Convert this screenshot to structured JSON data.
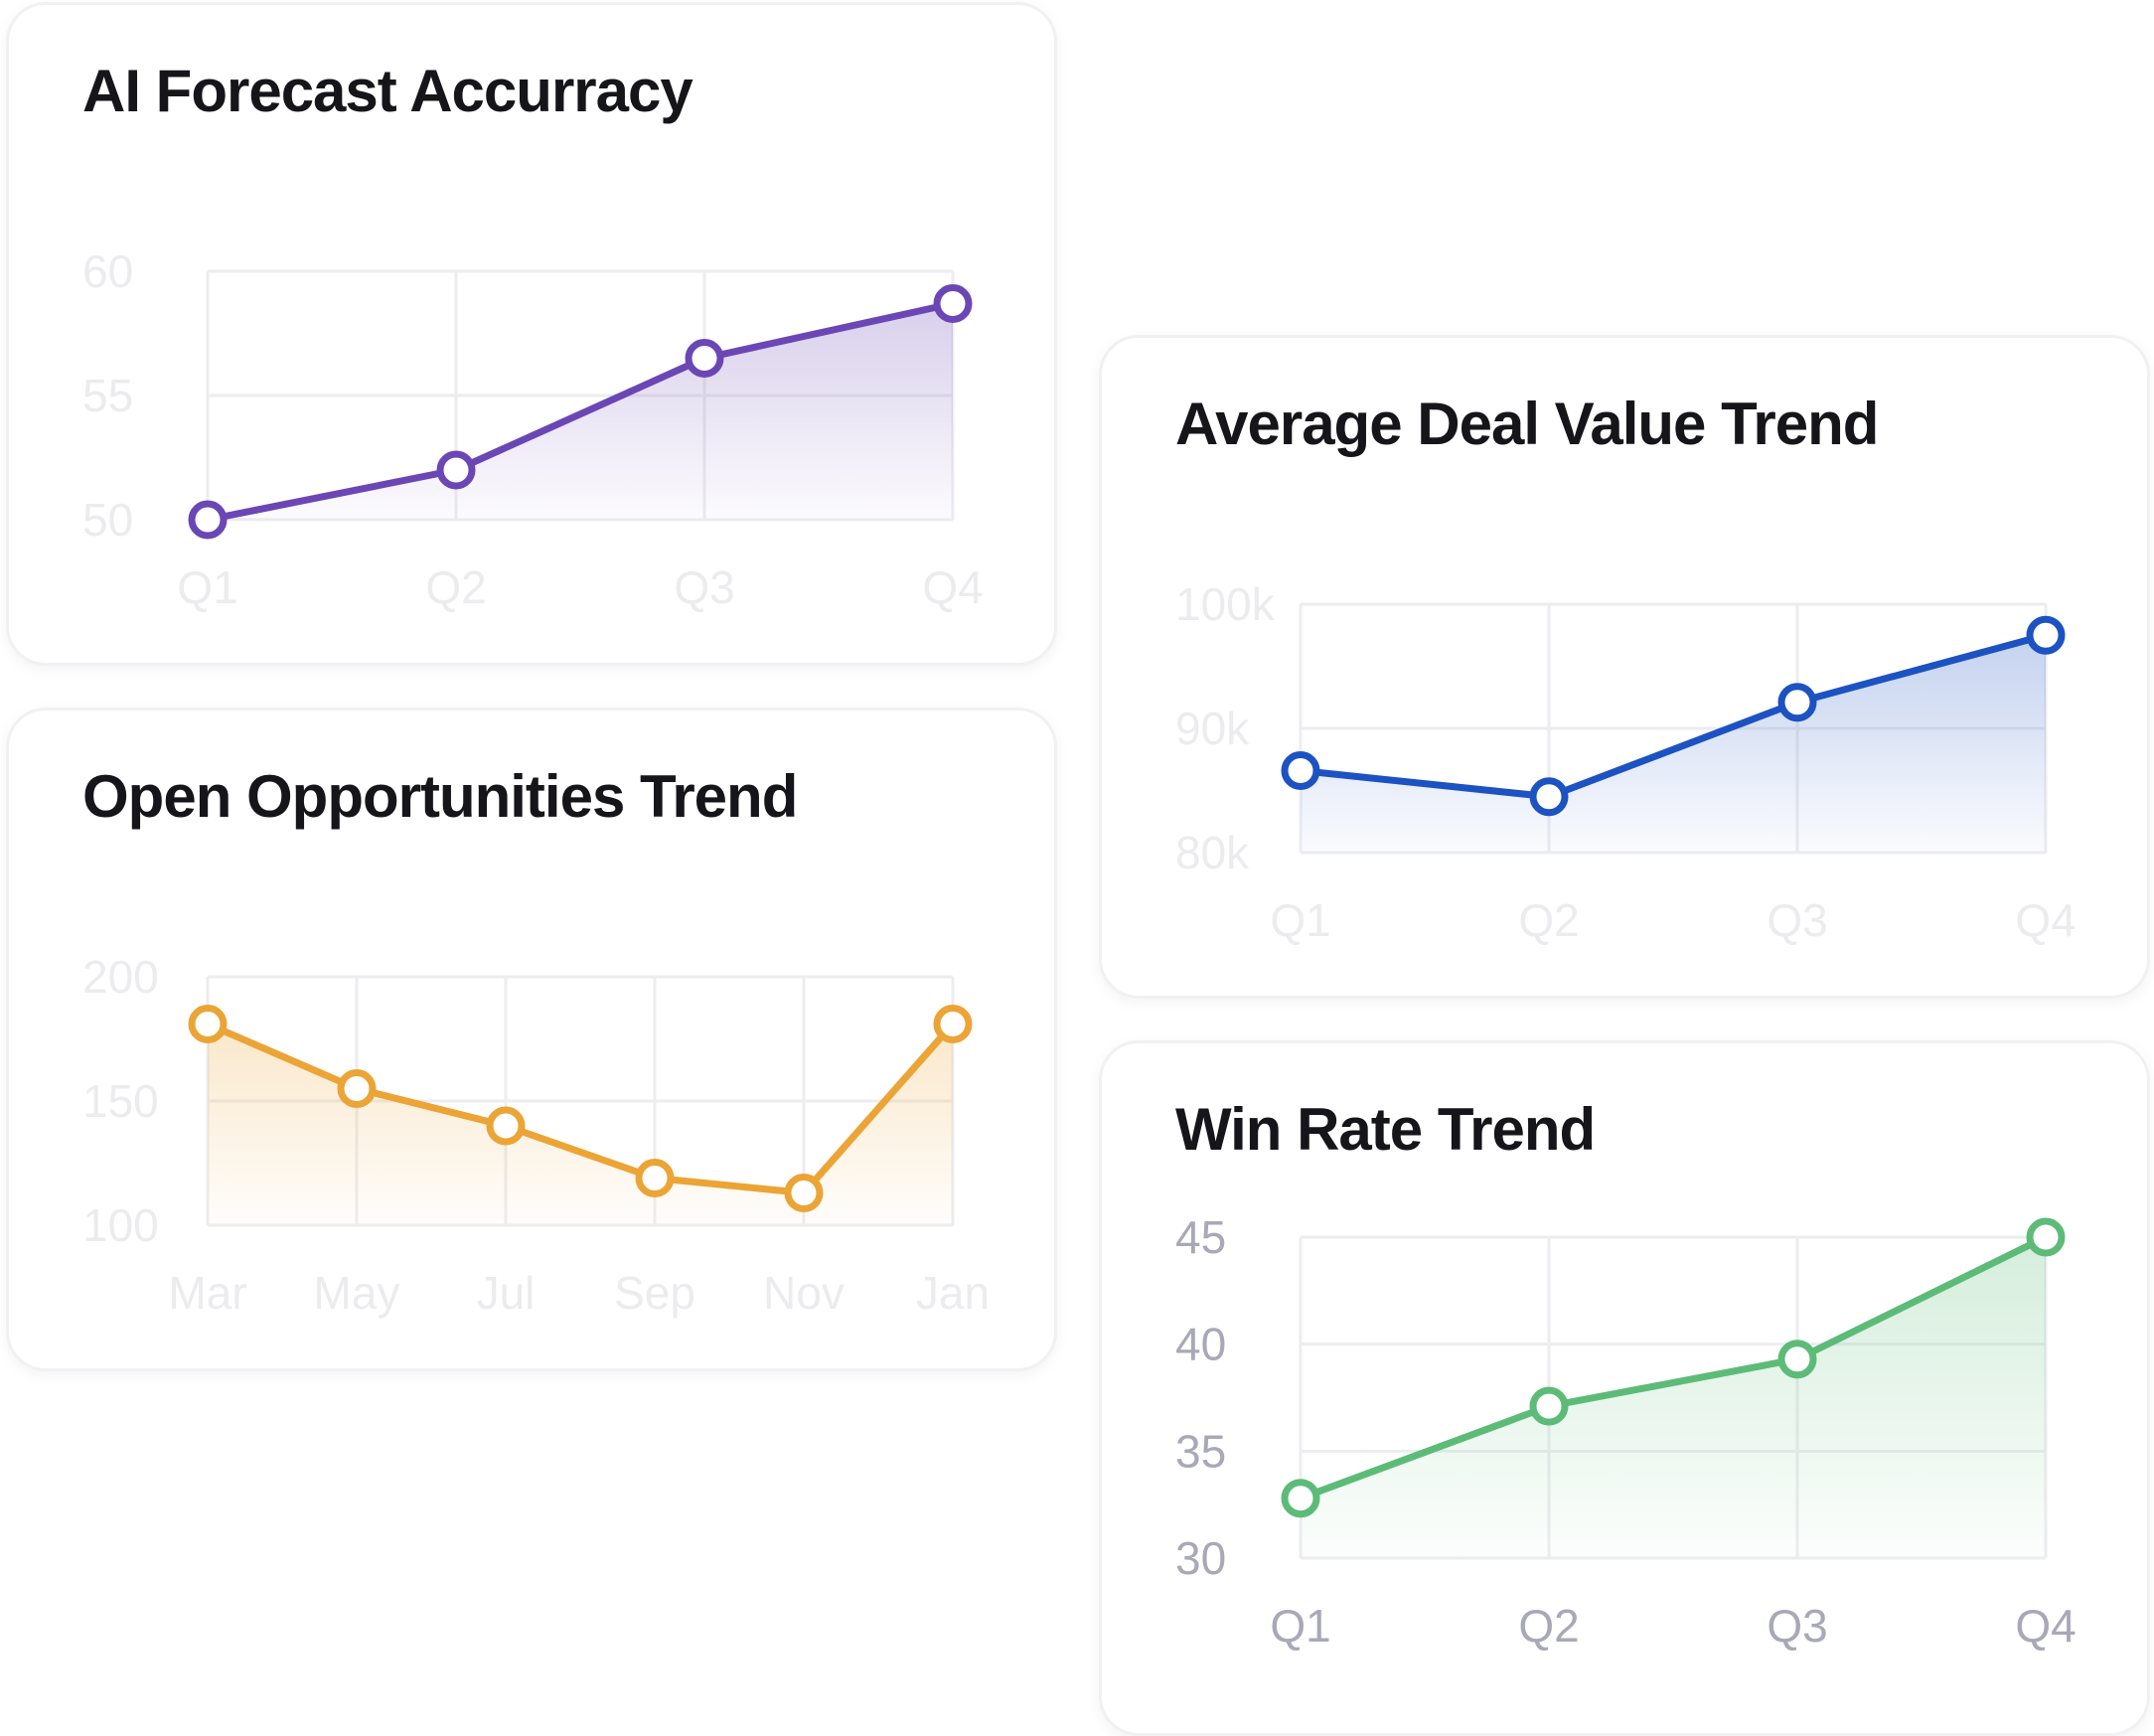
{
  "colors": {
    "forecast": "#6b46b5",
    "opportunities": "#eba435",
    "deal_value": "#1c52c2",
    "win_rate": "#5dbb78",
    "tick_faded": "#ececef",
    "tick_dark": "#a8a8b8",
    "grid": "#ededf0"
  },
  "chart_data": [
    {
      "id": "forecast",
      "type": "area",
      "title": "AI Forecast Accurracy",
      "xlabel": "",
      "ylabel": "",
      "categories": [
        "Q1",
        "Q2",
        "Q3",
        "Q4"
      ],
      "values": [
        50,
        52,
        56.5,
        58.7
      ],
      "ylim": [
        50,
        60
      ],
      "yticks": [
        50,
        55,
        60
      ],
      "ytick_labels": [
        "50",
        "55",
        "60"
      ],
      "grid": true,
      "legend": "none"
    },
    {
      "id": "opportunities",
      "type": "area",
      "title": "Open Opportunities Trend",
      "xlabel": "",
      "ylabel": "",
      "categories": [
        "Mar",
        "May",
        "Jul",
        "Sep",
        "Nov",
        "Jan"
      ],
      "values": [
        181,
        155,
        140,
        119,
        113,
        181
      ],
      "ylim": [
        100,
        200
      ],
      "yticks": [
        100,
        150,
        200
      ],
      "ytick_labels": [
        "100",
        "150",
        "200"
      ],
      "grid": true,
      "legend": "none"
    },
    {
      "id": "deal_value",
      "type": "area",
      "title": "Average Deal Value Trend",
      "xlabel": "",
      "ylabel": "",
      "categories": [
        "Q1",
        "Q2",
        "Q3",
        "Q4"
      ],
      "values": [
        86600,
        84500,
        92100,
        97500
      ],
      "ylim": [
        80000,
        100000
      ],
      "yticks": [
        80000,
        90000,
        100000
      ],
      "ytick_labels": [
        "80k",
        "90k",
        "100k"
      ],
      "grid": true,
      "legend": "none"
    },
    {
      "id": "win_rate",
      "type": "area",
      "title": "Win Rate Trend",
      "xlabel": "",
      "ylabel": "",
      "categories": [
        "Q1",
        "Q2",
        "Q3",
        "Q4"
      ],
      "values": [
        32.8,
        37.1,
        39.3,
        45
      ],
      "ylim": [
        30,
        45
      ],
      "yticks": [
        30,
        35,
        40,
        45
      ],
      "ytick_labels": [
        "30",
        "35",
        "40",
        "45"
      ],
      "grid": true,
      "legend": "none"
    }
  ]
}
